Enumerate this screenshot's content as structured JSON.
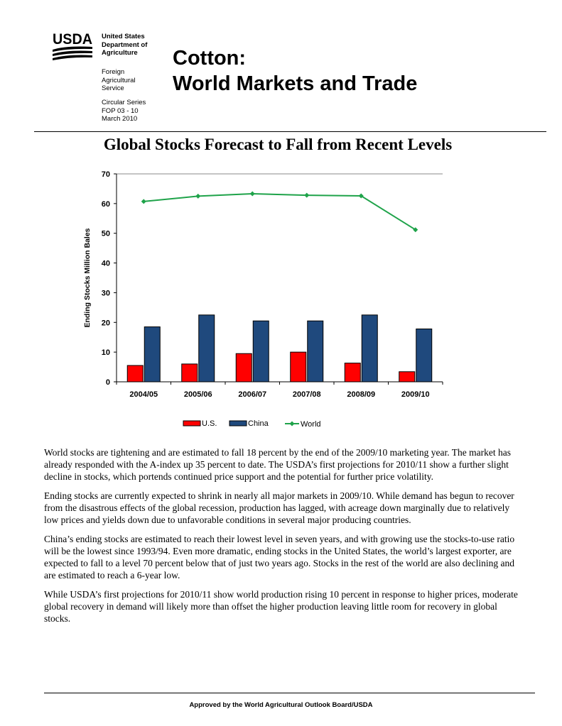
{
  "header": {
    "logo_text": "USDA",
    "agency_lines": "United States\nDepartment of\nAgriculture",
    "service_lines": "Foreign\nAgricultural\nService",
    "circular_lines": "Circular Series\nFOP 03 - 10\nMarch 2010",
    "title_line1": "Cotton:",
    "title_line2": "World Markets and Trade"
  },
  "headline": "Global Stocks Forecast to Fall from Recent Levels",
  "chart_data": {
    "type": "bar",
    "categories": [
      "2004/05",
      "2005/06",
      "2006/07",
      "2007/08",
      "2008/09",
      "2009/10"
    ],
    "series": [
      {
        "name": "U.S.",
        "type": "bar",
        "color": "#ff0000",
        "values": [
          5.5,
          6.0,
          9.5,
          10.0,
          6.3,
          3.4
        ]
      },
      {
        "name": "China",
        "type": "bar",
        "color": "#1f497d",
        "values": [
          18.5,
          22.5,
          20.5,
          20.5,
          22.5,
          17.8
        ]
      },
      {
        "name": "World",
        "type": "line",
        "color": "#1fa34a",
        "values": [
          60.7,
          62.5,
          63.3,
          62.8,
          62.6,
          51.2
        ]
      }
    ],
    "ylabel": "Ending Stocks Million Bales",
    "ylim": [
      0,
      70
    ],
    "yticks": [
      0,
      10,
      20,
      30,
      40,
      50,
      60,
      70
    ],
    "grid": false,
    "legend": "bottom"
  },
  "body_paragraphs": [
    "World stocks are tightening and are estimated to fall 18 percent by the end of the 2009/10 marketing year. The market has already responded with the A-index up 35 percent to date.  The USDA’s first projections for 2010/11 show a further slight decline in stocks, which portends continued price support and the potential for further price volatility.",
    "Ending stocks are currently expected to shrink in nearly all major markets in 2009/10.  While demand has begun to recover from the disastrous effects of the global recession, production has lagged, with acreage down marginally due to relatively low prices and yields down due to unfavorable conditions in several major producing countries.",
    "China’s ending stocks are estimated to reach their lowest level in seven years, and with growing use the stocks-to-use ratio will be the lowest since 1993/94.  Even more dramatic, ending stocks in the United States, the world’s largest exporter, are expected to fall to a level 70 percent below that of just two years ago.  Stocks in the rest of the world are also declining and are estimated to reach a 6-year low.",
    "While USDA’s first projections for 2010/11 show world production rising 10 percent in response to higher prices, moderate global recovery in demand will likely more than offset the higher production leaving little room for recovery in global stocks."
  ],
  "footer": "Approved by the World Agricultural Outlook Board/USDA"
}
